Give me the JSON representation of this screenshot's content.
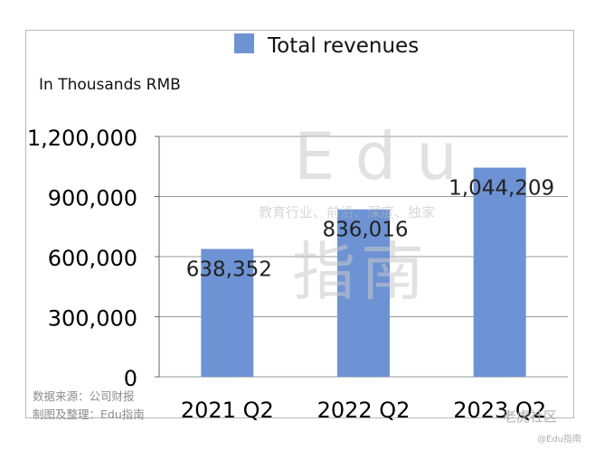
{
  "chart_data": {
    "type": "bar",
    "categories": [
      "2021 Q2",
      "2022 Q2",
      "2023 Q2"
    ],
    "series": [
      {
        "name": "Total revenues",
        "values": [
          638352,
          836016,
          1044209
        ]
      }
    ],
    "data_labels": [
      "638,352",
      "836,016",
      "1,044,209"
    ],
    "unit_label": "In Thousands RMB",
    "yticks": [
      0,
      300000,
      600000,
      900000,
      1200000
    ],
    "ytick_labels": [
      "0",
      "300,000",
      "600,000",
      "900,000",
      "1,200,000"
    ],
    "ylim": [
      0,
      1200000
    ],
    "grid": true,
    "legend_position": "top",
    "bar_color": "#6d93d4"
  },
  "watermark": {
    "brand": "Edu",
    "tagline": "教育行业、前沿、深度、独家",
    "chinese_name": "指南"
  },
  "source": {
    "line1": "数据来源：公司财报",
    "line2": "制图及整理：Edu指南"
  },
  "corner_marks": {
    "community": "老虎社区",
    "handle": "@Edu指南"
  }
}
